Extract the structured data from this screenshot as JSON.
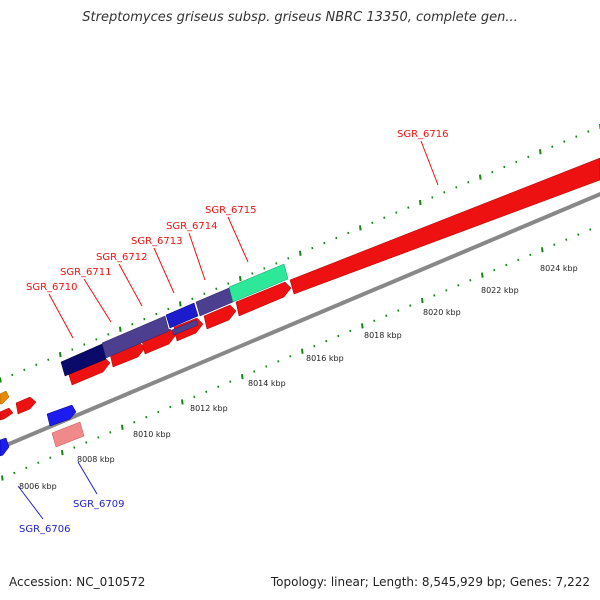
{
  "title": "Streptomyces griseus subsp. griseus NBRC 13350, complete gen...",
  "footer": {
    "accession": "Accession: NC_010572",
    "stats": "Topology: linear; Length: 8,545,929 bp; Genes: 7,222"
  },
  "colors": {
    "label_red": "#ee1111",
    "label_blue": "#2222cc",
    "tick_green": "#118811",
    "backbone": "#888888"
  },
  "scale_labels": [
    "8006 kbp",
    "8008 kbp",
    "8010 kbp",
    "8012 kbp",
    "8014 kbp",
    "8016 kbp",
    "8018 kbp",
    "8020 kbp",
    "8022 kbp",
    "8024 kbp"
  ],
  "gene_labels": [
    {
      "id": "SGR_6706",
      "color": "blue"
    },
    {
      "id": "SGR_6709",
      "color": "blue"
    },
    {
      "id": "SGR_6710",
      "color": "red"
    },
    {
      "id": "SGR_6711",
      "color": "red"
    },
    {
      "id": "SGR_6712",
      "color": "red"
    },
    {
      "id": "SGR_6713",
      "color": "red"
    },
    {
      "id": "SGR_6714",
      "color": "red"
    },
    {
      "id": "SGR_6715",
      "color": "red"
    },
    {
      "id": "SGR_6716",
      "color": "red"
    }
  ]
}
